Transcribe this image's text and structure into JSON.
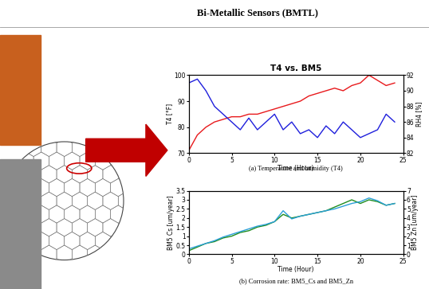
{
  "title": "Bi-Metallic Sensors (BMTL)",
  "chart_data": [
    {
      "type": "line",
      "title": "T4 vs. BM5",
      "caption": "(a) Temperature and humidity (T4)",
      "x_label": "Time (Hour)",
      "y_label": "T4 [°F]",
      "y2_label": "RH4 [%]",
      "x": [
        0,
        1,
        2,
        3,
        4,
        5,
        6,
        7,
        8,
        9,
        10,
        11,
        12,
        13,
        14,
        15,
        16,
        17,
        18,
        19,
        20,
        21,
        22,
        23,
        24
      ],
      "xlim": [
        0,
        25
      ],
      "xticks": [
        0,
        5,
        10,
        15,
        20,
        25
      ],
      "ylim": [
        70,
        100
      ],
      "yticks": [
        70,
        80,
        90,
        100
      ],
      "y2lim": [
        82,
        92
      ],
      "y2ticks": [
        82,
        84,
        86,
        88,
        90,
        92
      ],
      "series": [
        {
          "color": "#e8191c",
          "values": [
            71,
            77,
            80,
            82,
            83,
            84,
            84,
            85,
            85,
            86,
            87,
            88,
            89,
            90,
            92,
            93,
            94,
            95,
            94,
            96,
            97,
            100,
            98,
            96,
            97
          ]
        },
        {
          "color": "#1f1fdc",
          "axis": "y2",
          "values": [
            91,
            91.5,
            90,
            88,
            87,
            86,
            85,
            86.5,
            85,
            86,
            87,
            85,
            86,
            84.5,
            85,
            84,
            85.5,
            84.5,
            86,
            85,
            84,
            84.5,
            85,
            87,
            86
          ]
        }
      ]
    },
    {
      "type": "line",
      "caption": "(b) Corrosion rate: BM5_Cs and BM5_Zn",
      "x_label": "Time (Hour)",
      "y_label": "BM5 Cs [um/year]",
      "y2_label": "BM5 Zn [um/year]",
      "x": [
        0,
        1,
        2,
        3,
        4,
        5,
        6,
        7,
        8,
        9,
        10,
        11,
        12,
        13,
        14,
        15,
        16,
        17,
        18,
        19,
        20,
        21,
        22,
        23,
        24
      ],
      "xlim": [
        0,
        25
      ],
      "xticks": [
        0,
        5,
        10,
        15,
        20,
        25
      ],
      "ylim": [
        0,
        3.5
      ],
      "yticks": [
        0,
        0.5,
        1,
        1.5,
        2,
        2.5,
        3,
        3.5
      ],
      "y2lim": [
        0,
        7
      ],
      "y2ticks": [
        0,
        1,
        2,
        3,
        4,
        5,
        6,
        7
      ],
      "series": [
        {
          "color": "#1e8c1e",
          "values": [
            0.2,
            0.4,
            0.6,
            0.7,
            0.9,
            1.0,
            1.2,
            1.3,
            1.5,
            1.6,
            1.8,
            2.2,
            2.0,
            2.1,
            2.2,
            2.3,
            2.4,
            2.6,
            2.8,
            3.0,
            2.8,
            3.0,
            2.9,
            2.7,
            2.8
          ]
        },
        {
          "color": "#2a9fd8",
          "axis": "y2",
          "values": [
            0.6,
            0.9,
            1.2,
            1.5,
            1.9,
            2.2,
            2.5,
            2.8,
            3.1,
            3.3,
            3.6,
            4.8,
            3.9,
            4.2,
            4.4,
            4.6,
            4.8,
            5.0,
            5.3,
            5.6,
            5.8,
            6.2,
            5.9,
            5.4,
            5.6
          ]
        }
      ]
    }
  ]
}
